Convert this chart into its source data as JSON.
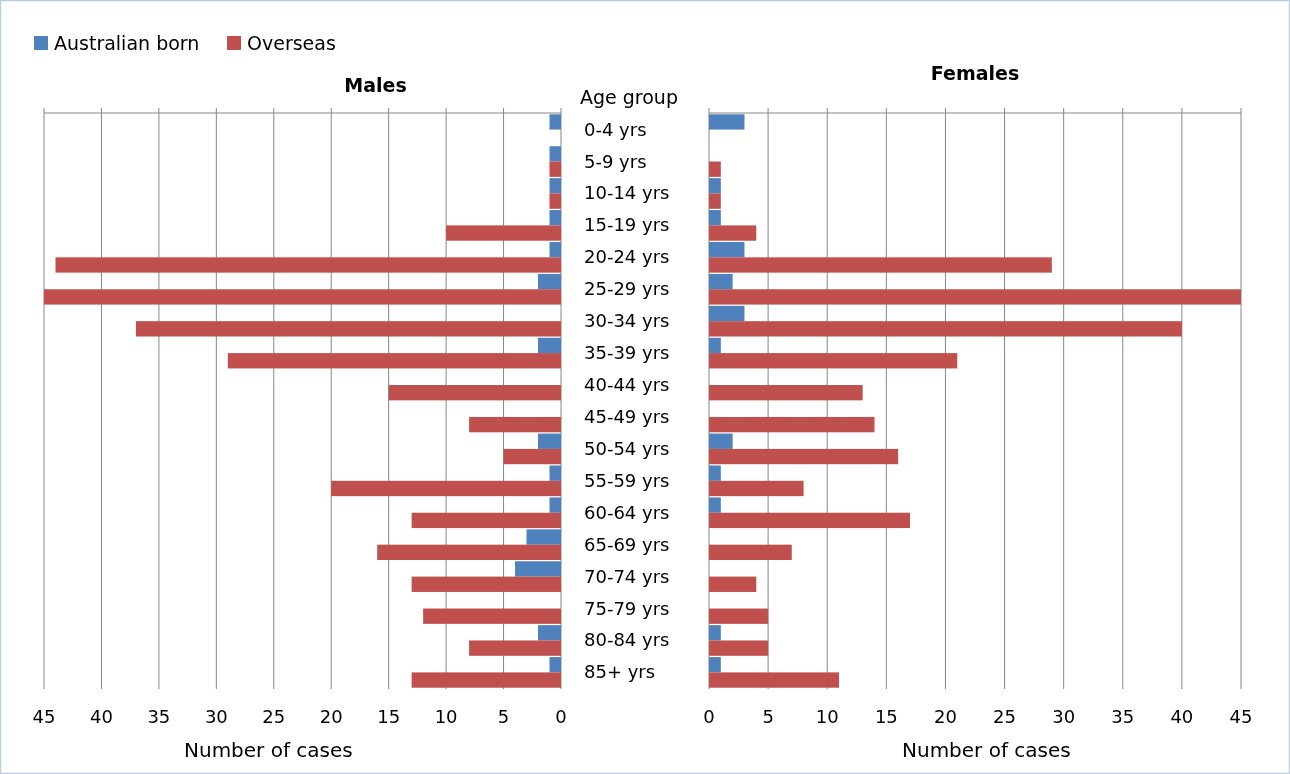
{
  "chart_data": [
    {
      "type": "bar",
      "orientation": "horizontal",
      "title": "Males",
      "xlabel": "Number of cases",
      "ylabel": "Age group",
      "categories": [
        "0-4 yrs",
        "5-9 yrs",
        "10-14 yrs",
        "15-19 yrs",
        "20-24 yrs",
        "25-29 yrs",
        "30-34 yrs",
        "35-39 yrs",
        "40-44 yrs",
        "45-49 yrs",
        "50-54 yrs",
        "55-59 yrs",
        "60-64 yrs",
        "65-69 yrs",
        "70-74 yrs",
        "75-79 yrs",
        "80-84 yrs",
        "85+ yrs"
      ],
      "series": [
        {
          "name": "Australian born",
          "color": "#4f81bd",
          "values": [
            1,
            1,
            1,
            1,
            1,
            2,
            0,
            2,
            0,
            0,
            2,
            1,
            1,
            3,
            4,
            0,
            2,
            1
          ]
        },
        {
          "name": "Overseas",
          "color": "#c0504d",
          "values": [
            0,
            1,
            1,
            10,
            44,
            45,
            37,
            29,
            15,
            8,
            5,
            20,
            13,
            16,
            13,
            12,
            8,
            13
          ]
        }
      ],
      "xlim": [
        45,
        0
      ],
      "xticks": [
        45,
        40,
        35,
        30,
        25,
        20,
        15,
        10,
        5,
        0
      ],
      "grid": "x",
      "legend": "top left"
    },
    {
      "type": "bar",
      "orientation": "horizontal",
      "title": "Females",
      "xlabel": "Number of cases",
      "categories": [
        null,
        null,
        null,
        null,
        null,
        null,
        null,
        null,
        null,
        null,
        null,
        null,
        null,
        null,
        null,
        null,
        null,
        null
      ],
      "series": [
        {
          "color": "#4f81bd",
          "values": [
            3,
            0,
            1,
            1,
            3,
            2,
            3,
            1,
            0,
            0,
            2,
            1,
            1,
            0,
            0,
            0,
            1,
            1
          ]
        },
        {
          "color": "#c0504d",
          "values": [
            0,
            1,
            1,
            4,
            29,
            45,
            40,
            21,
            13,
            14,
            16,
            8,
            17,
            7,
            4,
            5,
            5,
            11
          ]
        }
      ],
      "xlim": [
        0,
        45
      ],
      "xticks": [
        0,
        5,
        10,
        15,
        20,
        25,
        30,
        35,
        40,
        45
      ],
      "grid": "x",
      "tick_labels": "x"
    }
  ]
}
